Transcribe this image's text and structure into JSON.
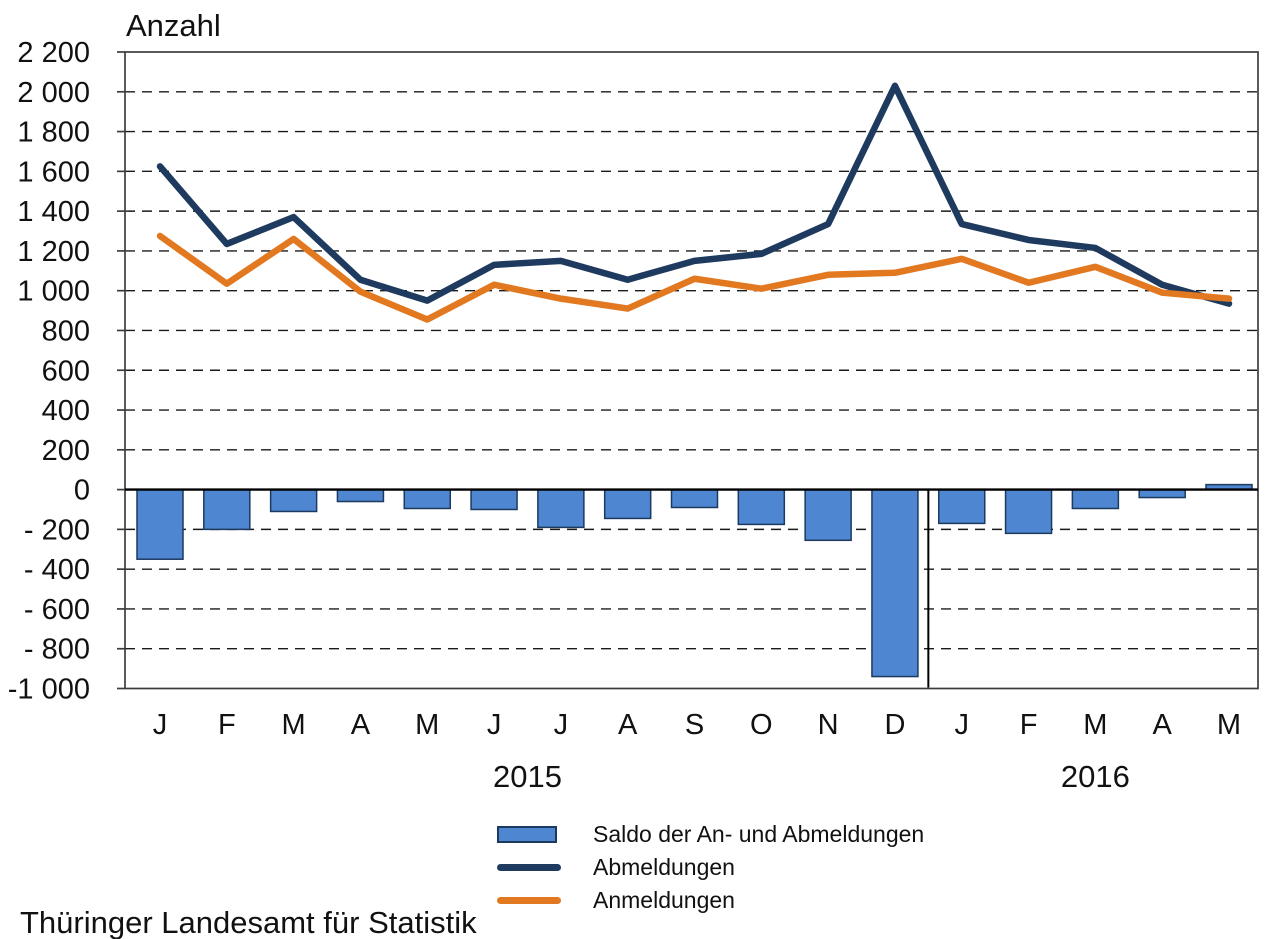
{
  "title": "Anzahl",
  "footer": "Thüringer Landesamt für Statistik",
  "legend": {
    "items": [
      {
        "label": "Saldo der An- und Abmeldungen"
      },
      {
        "label": "Abmeldungen"
      },
      {
        "label": "Anmeldungen"
      }
    ]
  },
  "colors": {
    "saldo_fill": "#4E86D2",
    "saldo_border": "#1C3A5E",
    "abmeldungen": "#1F3A5F",
    "anmeldungen": "#E2781F",
    "axis": "#3d3d3d",
    "gridline": "#1a1a1a",
    "zero_line": "#000000",
    "text": "#111111"
  },
  "chart_data": {
    "type": "combo-bar-line",
    "title": "Anzahl",
    "categories": [
      "J",
      "F",
      "M",
      "A",
      "M",
      "J",
      "J",
      "A",
      "S",
      "O",
      "N",
      "D",
      "J",
      "F",
      "M",
      "A",
      "M"
    ],
    "year_groups": [
      {
        "label": "2015",
        "start": 0,
        "end": 11
      },
      {
        "label": "2016",
        "start": 12,
        "end": 16
      }
    ],
    "year_separator_between": [
      11,
      12
    ],
    "ylim": [
      -1000,
      2200
    ],
    "ytick_step": 200,
    "grid": "dashed-horizontal",
    "legend_position": "bottom",
    "yticks": [
      {
        "value": 2200,
        "label": "2 200"
      },
      {
        "value": 2000,
        "label": "2 000"
      },
      {
        "value": 1800,
        "label": "1 800"
      },
      {
        "value": 1600,
        "label": "1 600"
      },
      {
        "value": 1400,
        "label": "1 400"
      },
      {
        "value": 1200,
        "label": "1 200"
      },
      {
        "value": 1000,
        "label": "1 000"
      },
      {
        "value": 800,
        "label": "800"
      },
      {
        "value": 600,
        "label": "600"
      },
      {
        "value": 400,
        "label": "400"
      },
      {
        "value": 200,
        "label": "200"
      },
      {
        "value": 0,
        "label": "0"
      },
      {
        "value": -200,
        "label": "- 200"
      },
      {
        "value": -400,
        "label": "- 400"
      },
      {
        "value": -600,
        "label": "- 600"
      },
      {
        "value": -800,
        "label": "- 800"
      },
      {
        "value": -1000,
        "label": "-1 000"
      }
    ],
    "series": [
      {
        "name": "Saldo der An- und Abmeldungen",
        "type": "bar",
        "values": [
          -350,
          -200,
          -110,
          -60,
          -95,
          -100,
          -190,
          -145,
          -90,
          -175,
          -255,
          -940,
          -170,
          -220,
          -95,
          -40,
          25
        ]
      },
      {
        "name": "Abmeldungen",
        "type": "line",
        "values": [
          1625,
          1235,
          1370,
          1055,
          950,
          1130,
          1150,
          1055,
          1150,
          1185,
          1335,
          2030,
          1335,
          1255,
          1215,
          1030,
          935
        ]
      },
      {
        "name": "Anmeldungen",
        "type": "line",
        "values": [
          1275,
          1035,
          1260,
          995,
          855,
          1030,
          960,
          910,
          1060,
          1010,
          1080,
          1090,
          1160,
          1040,
          1120,
          990,
          960
        ]
      }
    ]
  }
}
